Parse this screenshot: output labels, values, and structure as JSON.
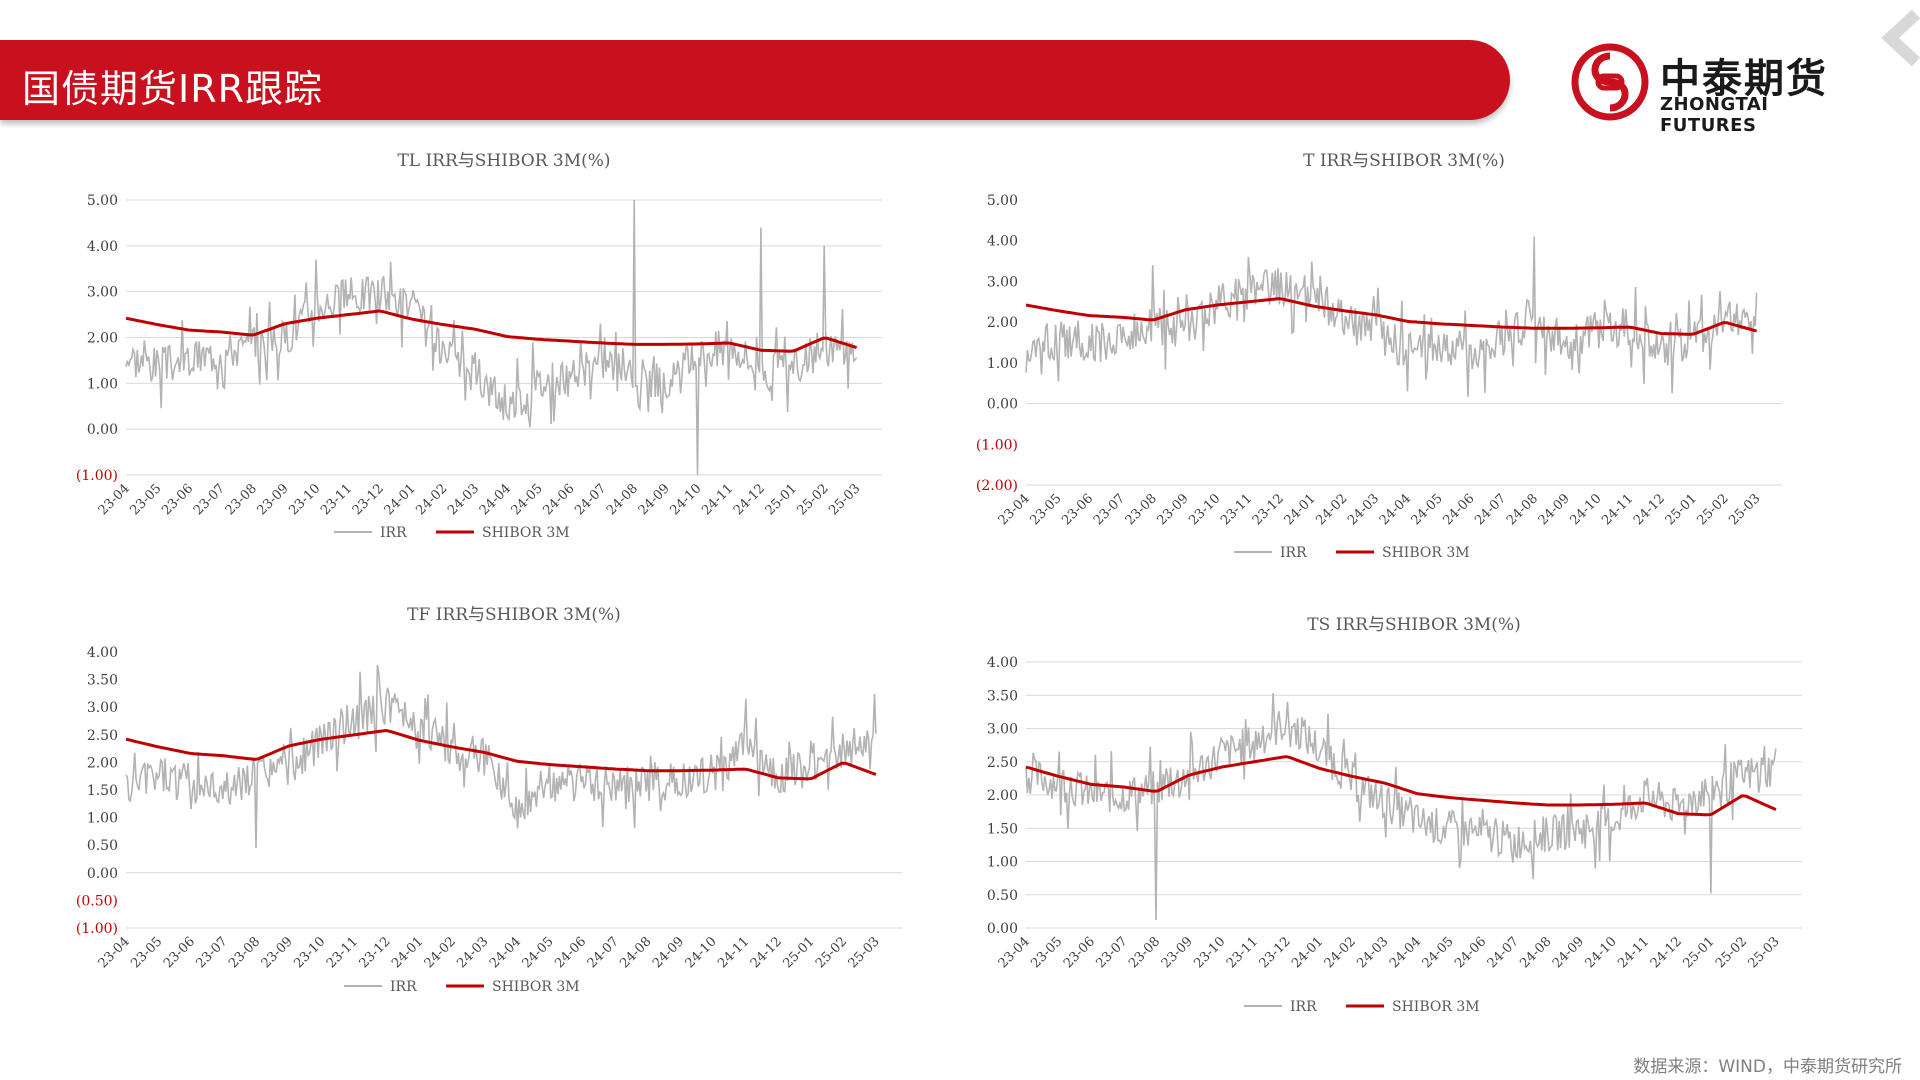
{
  "header": {
    "title": "国债期货IRR跟踪",
    "logo_cn": "中泰期货",
    "logo_en": "ZHONGTAI FUTURES"
  },
  "footer": {
    "source": "数据来源：WIND，中泰期货研究所"
  },
  "colors": {
    "brand_red": "#c8101e",
    "irr": "#b3b3b3",
    "shibor": "#c00000",
    "negative_label": "#c00000"
  },
  "chart_data": [
    {
      "id": "tl",
      "type": "line",
      "title": "TL IRR与SHIBOR 3M(%)",
      "x": [
        "23-04",
        "23-05",
        "23-06",
        "23-07",
        "23-08",
        "23-09",
        "23-10",
        "23-11",
        "23-12",
        "24-01",
        "24-02",
        "24-03",
        "24-04",
        "24-05",
        "24-06",
        "24-07",
        "24-08",
        "24-09",
        "24-10",
        "24-11",
        "24-12",
        "25-01",
        "25-02",
        "25-03"
      ],
      "ylim": [
        -1,
        5
      ],
      "yticks": [
        -1,
        0,
        1,
        2,
        3,
        4,
        5
      ],
      "ytick_labels": [
        "(1.00)",
        "0.00",
        "1.00",
        "2.00",
        "3.00",
        "4.00",
        "5.00"
      ],
      "grid": true,
      "legend": "bottom",
      "series": [
        {
          "name": "IRR",
          "values": [
            1.6,
            1.4,
            1.5,
            1.7,
            1.8,
            2.0,
            2.7,
            2.9,
            3.0,
            2.7,
            1.6,
            1.2,
            0.5,
            1.0,
            1.1,
            1.5,
            1.3,
            0.9,
            1.6,
            1.9,
            1.3,
            1.3,
            1.8,
            1.7
          ],
          "spikes": [
            [
              16,
              5.0
            ],
            [
              20,
              4.4
            ],
            [
              22,
              4.0
            ],
            [
              6,
              3.7
            ],
            [
              18,
              -1.0
            ]
          ]
        },
        {
          "name": "SHIBOR 3M",
          "values": [
            2.42,
            2.28,
            2.16,
            2.12,
            2.05,
            2.3,
            2.42,
            2.5,
            2.58,
            2.4,
            2.28,
            2.18,
            2.02,
            1.96,
            1.92,
            1.88,
            1.85,
            1.85,
            1.86,
            1.88,
            1.72,
            1.7,
            2.0,
            1.78
          ]
        }
      ]
    },
    {
      "id": "t",
      "type": "line",
      "title": "T IRR与SHIBOR 3M(%)",
      "x": [
        "23-04",
        "23-05",
        "23-06",
        "23-07",
        "23-08",
        "23-09",
        "23-10",
        "23-11",
        "23-12",
        "24-01",
        "24-02",
        "24-03",
        "24-04",
        "24-05",
        "24-06",
        "24-07",
        "24-08",
        "24-09",
        "24-10",
        "24-11",
        "24-12",
        "25-01",
        "25-02",
        "25-03"
      ],
      "ylim": [
        -2,
        5
      ],
      "yticks": [
        -2,
        -1,
        0,
        1,
        2,
        3,
        4,
        5
      ],
      "ytick_labels": [
        "(2.00)",
        "(1.00)",
        "0.00",
        "1.00",
        "2.00",
        "3.00",
        "4.00",
        "5.00"
      ],
      "grid": false,
      "legend": "bottom",
      "series": [
        {
          "name": "IRR",
          "values": [
            1.2,
            1.6,
            1.5,
            1.6,
            1.9,
            1.8,
            2.4,
            2.8,
            2.9,
            2.6,
            2.0,
            1.8,
            1.3,
            1.4,
            1.3,
            1.6,
            2.0,
            1.5,
            1.8,
            1.9,
            1.3,
            1.6,
            2.0,
            2.3
          ],
          "spikes": [
            [
              16,
              4.1
            ],
            [
              7,
              3.6
            ],
            [
              4,
              3.4
            ],
            [
              12,
              0.3
            ]
          ]
        },
        {
          "name": "SHIBOR 3M",
          "values": [
            2.42,
            2.28,
            2.16,
            2.12,
            2.05,
            2.3,
            2.42,
            2.5,
            2.58,
            2.4,
            2.28,
            2.18,
            2.02,
            1.96,
            1.92,
            1.88,
            1.85,
            1.85,
            1.86,
            1.88,
            1.72,
            1.7,
            2.0,
            1.78
          ]
        }
      ]
    },
    {
      "id": "tf",
      "type": "line",
      "title": "TF IRR与SHIBOR 3M(%)",
      "x": [
        "23-04",
        "23-05",
        "23-06",
        "23-07",
        "23-08",
        "23-09",
        "23-10",
        "23-11",
        "23-12",
        "24-01",
        "24-02",
        "24-03",
        "24-04",
        "24-05",
        "24-06",
        "24-07",
        "24-08",
        "24-09",
        "24-10",
        "24-11",
        "24-12",
        "25-01",
        "25-02",
        "25-03"
      ],
      "ylim": [
        -1,
        4
      ],
      "yticks": [
        -1,
        -0.5,
        0,
        0.5,
        1,
        1.5,
        2,
        2.5,
        3,
        3.5,
        4
      ],
      "ytick_labels": [
        "(1.00)",
        "(0.50)",
        "0.00",
        "0.50",
        "1.00",
        "1.50",
        "2.00",
        "2.50",
        "3.00",
        "3.50",
        "4.00"
      ],
      "grid": false,
      "legend": "bottom",
      "series": [
        {
          "name": "IRR",
          "values": [
            1.5,
            1.8,
            1.6,
            1.5,
            1.8,
            1.9,
            2.4,
            2.8,
            3.0,
            2.7,
            2.2,
            2.1,
            1.2,
            1.7,
            1.6,
            1.6,
            1.6,
            1.7,
            1.8,
            2.3,
            1.7,
            1.9,
            2.2,
            2.5
          ],
          "spikes": [
            [
              19,
              3.15
            ],
            [
              8,
              3.35
            ],
            [
              4,
              0.45
            ],
            [
              12,
              0.8
            ]
          ]
        },
        {
          "name": "SHIBOR 3M",
          "values": [
            2.42,
            2.28,
            2.16,
            2.12,
            2.05,
            2.3,
            2.42,
            2.5,
            2.58,
            2.4,
            2.28,
            2.18,
            2.02,
            1.96,
            1.92,
            1.88,
            1.85,
            1.85,
            1.86,
            1.88,
            1.72,
            1.7,
            2.0,
            1.78
          ]
        }
      ]
    },
    {
      "id": "ts",
      "type": "line",
      "title": "TS IRR与SHIBOR 3M(%)",
      "x": [
        "23-04",
        "23-05",
        "23-06",
        "23-07",
        "23-08",
        "23-09",
        "23-10",
        "23-11",
        "23-12",
        "24-01",
        "24-02",
        "24-03",
        "24-04",
        "24-05",
        "24-06",
        "24-07",
        "24-08",
        "24-09",
        "24-10",
        "24-11",
        "24-12",
        "25-01",
        "25-02",
        "25-03"
      ],
      "ylim": [
        0,
        4
      ],
      "yticks": [
        0,
        0.5,
        1,
        1.5,
        2,
        2.5,
        3,
        3.5,
        4
      ],
      "ytick_labels": [
        "0.00",
        "0.50",
        "1.00",
        "1.50",
        "2.00",
        "2.50",
        "3.00",
        "3.50",
        "4.00"
      ],
      "grid": true,
      "legend": "bottom",
      "series": [
        {
          "name": "IRR",
          "values": [
            2.3,
            2.2,
            2.0,
            2.0,
            2.1,
            2.3,
            2.6,
            2.8,
            3.1,
            2.7,
            2.2,
            1.9,
            1.6,
            1.5,
            1.4,
            1.3,
            1.4,
            1.5,
            1.6,
            2.0,
            1.8,
            2.1,
            2.3,
            2.4
          ],
          "spikes": [
            [
              4,
              0.12
            ],
            [
              21,
              0.52
            ],
            [
              8,
              3.4
            ],
            [
              23,
              2.7
            ]
          ]
        },
        {
          "name": "SHIBOR 3M",
          "values": [
            2.42,
            2.28,
            2.16,
            2.12,
            2.05,
            2.3,
            2.42,
            2.5,
            2.58,
            2.4,
            2.28,
            2.18,
            2.02,
            1.96,
            1.92,
            1.88,
            1.85,
            1.85,
            1.86,
            1.88,
            1.72,
            1.7,
            2.0,
            1.78
          ]
        }
      ]
    }
  ]
}
